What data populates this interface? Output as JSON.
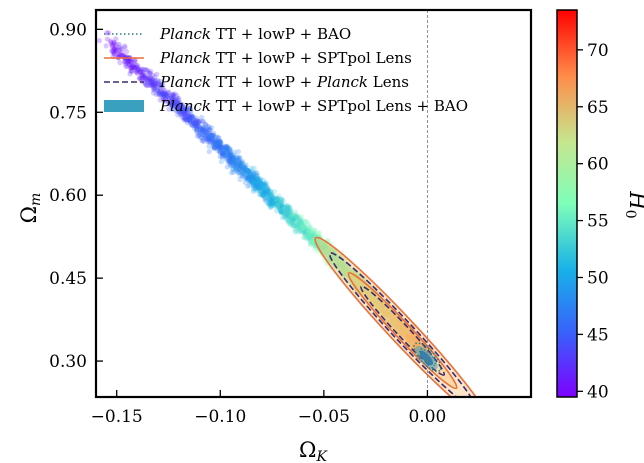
{
  "chart_data": {
    "type": "scatter",
    "xlabel": "Ω_K",
    "ylabel": "Ω_m",
    "xlim": [
      -0.16,
      0.05
    ],
    "ylim": [
      0.235,
      0.935
    ],
    "xticks": [
      "−0.15",
      "−0.10",
      "−0.05",
      "0.00"
    ],
    "xtick_values": [
      -0.15,
      -0.1,
      -0.05,
      0.0
    ],
    "yticks": [
      "0.30",
      "0.45",
      "0.60",
      "0.75",
      "0.90"
    ],
    "ytick_values": [
      0.3,
      0.45,
      0.6,
      0.75,
      0.9
    ],
    "reference_line_x": 0.0,
    "legend_position": "top-left",
    "legend": [
      {
        "pre": "",
        "it": "Planck",
        "post": " TT + lowP + BAO",
        "style": "dotted",
        "color": "#2a7f7f"
      },
      {
        "pre": "",
        "it": "Planck",
        "post": " TT + lowP + SPTpol Lens",
        "style": "solid",
        "color": "#e8703a"
      },
      {
        "pre": "",
        "it": "Planck",
        "post": " TT + lowP + ",
        "it2": "Planck",
        "post2": " Lens",
        "style": "dashed",
        "color": "#3b2a6e"
      },
      {
        "pre": "",
        "it": "Planck",
        "post": " TT + lowP + SPTpol Lens + BAO",
        "style": "filled",
        "color": "#3aa0c0"
      }
    ],
    "samples_relation": {
      "x_range": [
        -0.155,
        0.0
      ],
      "omega_m_at_x": [
        {
          "x": -0.155,
          "y": 0.88
        },
        {
          "x": -0.12,
          "y": 0.76
        },
        {
          "x": -0.09,
          "y": 0.65
        },
        {
          "x": -0.06,
          "y": 0.54
        },
        {
          "x": -0.03,
          "y": 0.43
        },
        {
          "x": 0.0,
          "y": 0.31
        }
      ],
      "h0_at_x": [
        {
          "x": -0.155,
          "y": 40
        },
        {
          "x": -0.12,
          "y": 44
        },
        {
          "x": -0.09,
          "y": 48
        },
        {
          "x": -0.06,
          "y": 55
        },
        {
          "x": -0.03,
          "y": 61
        },
        {
          "x": 0.0,
          "y": 68
        }
      ]
    },
    "contours": {
      "sptpol_lens": {
        "center": [
          -0.012,
          0.355
        ],
        "outer_half_length": 0.042,
        "inner_half_length": 0.026
      },
      "planck_lens": {
        "center": [
          -0.012,
          0.355
        ],
        "outer_half_length": 0.035,
        "inner_half_length": 0.02
      },
      "bao": {
        "center": [
          0.0,
          0.307
        ],
        "outer_half_length": 0.006,
        "inner_half_length": 0.0035
      },
      "combined": {
        "center": [
          -0.0005,
          0.306
        ],
        "outer_half_length": 0.005,
        "inner_half_length": 0.003
      }
    },
    "colorbar": {
      "label": "H_0",
      "range": [
        39.5,
        73.5
      ],
      "ticks": [
        "40",
        "45",
        "50",
        "55",
        "60",
        "65",
        "70"
      ],
      "tick_values": [
        40,
        45,
        50,
        55,
        60,
        65,
        70
      ],
      "colormap": "rainbow"
    }
  }
}
